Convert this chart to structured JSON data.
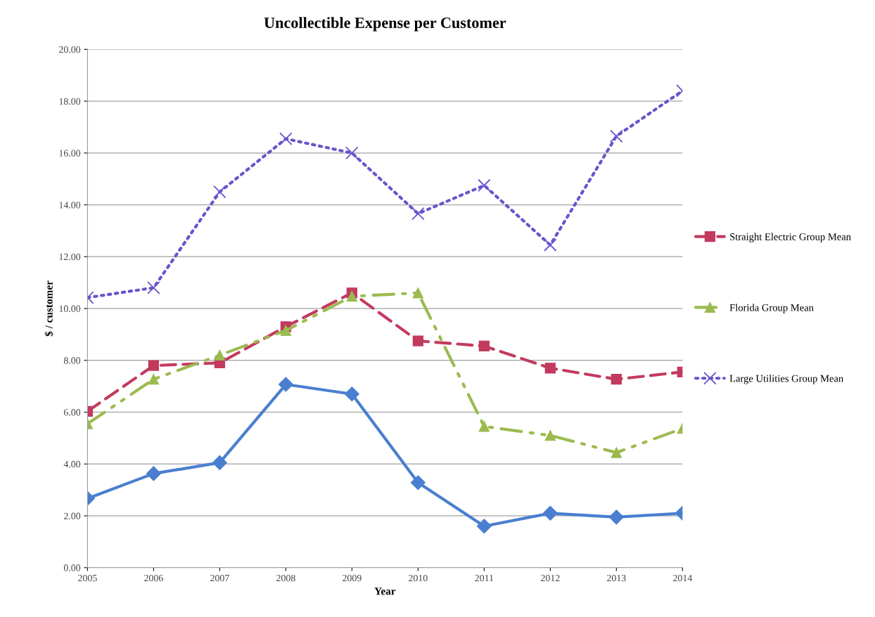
{
  "chart_data": {
    "type": "line",
    "title": "Uncollectible Expense per Customer",
    "xlabel": "Year",
    "ylabel": "$ / customer",
    "categories": [
      "2005",
      "2006",
      "2007",
      "2008",
      "2009",
      "2010",
      "2011",
      "2012",
      "2013",
      "2014"
    ],
    "series": [
      {
        "color": "#4a7fd0",
        "marker": "diamond",
        "line_style": "solid",
        "values": [
          2.67,
          3.63,
          4.05,
          7.07,
          6.7,
          3.28,
          1.6,
          2.1,
          1.95,
          2.1
        ]
      },
      {
        "name": "Straight Electric Group Mean",
        "color": "#c23b5f",
        "marker": "square",
        "line_style": "dashed",
        "values": [
          6.03,
          7.8,
          7.9,
          9.3,
          10.6,
          8.75,
          8.55,
          7.7,
          7.27,
          7.55
        ]
      },
      {
        "name": "Florida Group Mean",
        "color": "#9bbb4f",
        "marker": "triangle",
        "line_style": "dashdot",
        "values": [
          5.55,
          7.27,
          8.2,
          9.15,
          10.47,
          10.6,
          5.45,
          5.1,
          4.44,
          5.37
        ]
      },
      {
        "name": "Large Utilities Group Mean",
        "color": "#6655cc",
        "marker": "cross",
        "line_style": "dotted",
        "values": [
          10.42,
          10.8,
          14.5,
          16.55,
          16.0,
          13.66,
          14.75,
          12.45,
          16.65,
          18.4
        ]
      }
    ],
    "ylim": [
      0,
      20
    ],
    "yticks": [
      {
        "value": 0,
        "label": "0.00"
      },
      {
        "value": 2,
        "label": "2.00"
      },
      {
        "value": 4,
        "label": "4.00"
      },
      {
        "value": 6,
        "label": "6.00"
      },
      {
        "value": 8,
        "label": "8.00"
      },
      {
        "value": 10,
        "label": "10.00"
      },
      {
        "value": 12,
        "label": "12.00"
      },
      {
        "value": 14,
        "label": "14.00"
      },
      {
        "value": 16,
        "label": "16.00"
      },
      {
        "value": 18,
        "label": "18.00"
      },
      {
        "value": 20,
        "label": "20.00"
      }
    ],
    "grid": "y",
    "legend": "right"
  }
}
